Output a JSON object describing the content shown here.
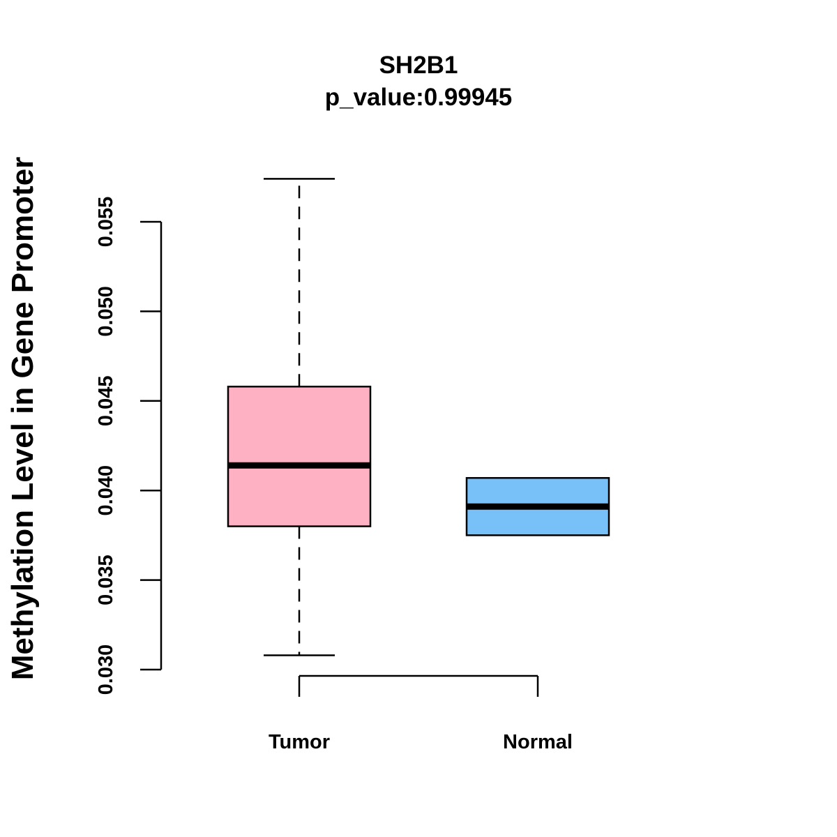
{
  "chart_data": {
    "type": "box",
    "title": "SH2B1",
    "subtitle": "p_value:0.99945",
    "xlabel": "",
    "ylabel": "Methylation Level in Gene Promoter",
    "ylim": [
      0.03,
      0.055
    ],
    "yticks": [
      0.03,
      0.035,
      0.04,
      0.045,
      0.05,
      0.055
    ],
    "ytick_labels": [
      "0.030",
      "0.035",
      "0.040",
      "0.045",
      "0.050",
      "0.055"
    ],
    "categories": [
      "Tumor",
      "Normal"
    ],
    "series": [
      {
        "name": "Tumor",
        "whisker_low": 0.0308,
        "q1": 0.038,
        "median": 0.0414,
        "q3": 0.0458,
        "whisker_high": 0.0574,
        "color": "#FFB1C4"
      },
      {
        "name": "Normal",
        "whisker_low": 0.0375,
        "q1": 0.0375,
        "median": 0.0391,
        "q3": 0.0407,
        "whisker_high": 0.0407,
        "color": "#78C0F8"
      }
    ]
  }
}
